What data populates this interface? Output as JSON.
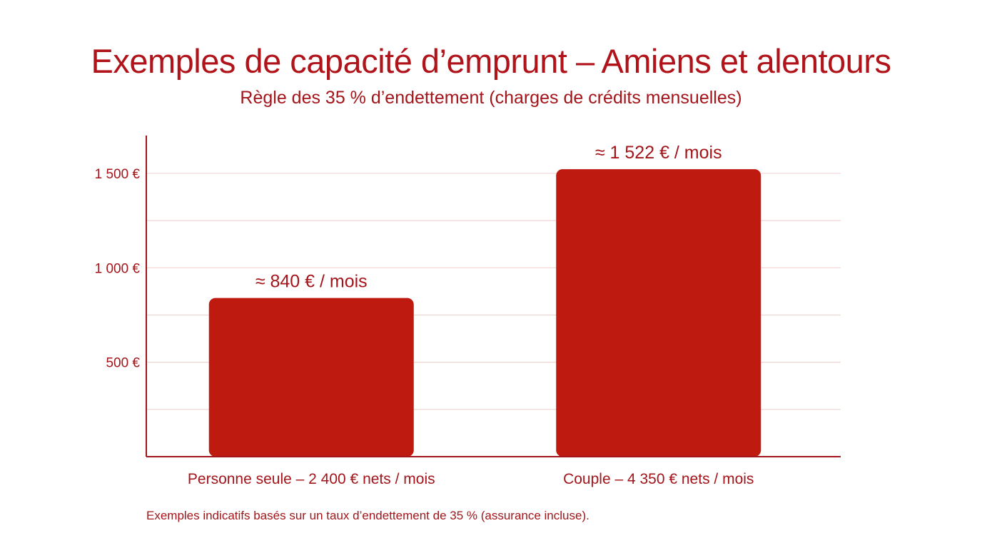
{
  "chart_data": {
    "type": "bar",
    "title": "Exemples de capacité d’emprunt – Amiens et alentours",
    "subtitle": "Règle des 35 % d’endettement (charges de crédits mensuelles)",
    "categories": [
      "Personne seule – 2 400 € nets / mois",
      "Couple – 4 350 € nets / mois"
    ],
    "values": [
      840,
      1522
    ],
    "data_labels": [
      "≈ 840 € / mois",
      "≈ 1 522 € / mois"
    ],
    "ylim": [
      0,
      1700
    ],
    "yticks": [
      500,
      1000,
      1500
    ],
    "ytick_labels": [
      "500 €",
      "1 000 €",
      "1 500 €"
    ],
    "minor_gridlines": [
      250,
      750,
      1250
    ],
    "grid": true,
    "xlabel": "",
    "ylabel": "",
    "bar_color": "#be1a10",
    "text_color": "#a3151a",
    "footnote": "Exemples indicatifs basés sur un taux d’endettement de 35 % (assurance incluse)."
  }
}
